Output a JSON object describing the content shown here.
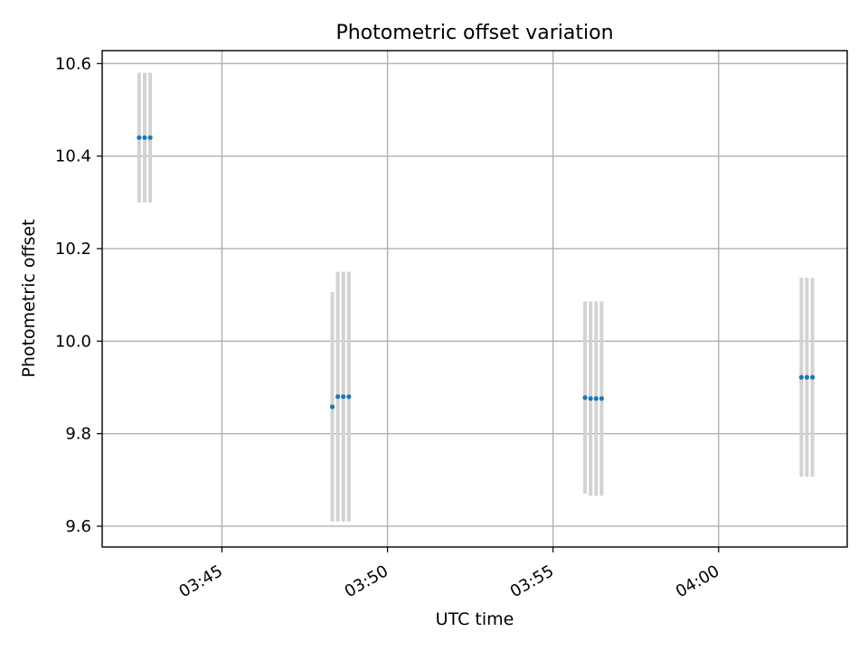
{
  "chart_data": {
    "type": "scatter",
    "title": "Photometric offset variation",
    "xlabel": "UTC time",
    "ylabel": "Photometric offset",
    "x_axis_type": "time",
    "xlim": [
      "03:41:23",
      "04:03:53"
    ],
    "ylim": [
      9.555,
      10.628
    ],
    "x_ticks": [
      "03:45",
      "03:50",
      "03:55",
      "04:00"
    ],
    "y_ticks": [
      9.6,
      9.8,
      10.0,
      10.2,
      10.4,
      10.6
    ],
    "y_tick_labels": [
      "9.6",
      "9.8",
      "10.0",
      "10.2",
      "10.4",
      "10.6"
    ],
    "grid": true,
    "marker_color": "#1f77b4",
    "errorbar_color": "#d3d3d3",
    "points": [
      {
        "t": "03:42:30",
        "y": 10.44,
        "err": 0.14
      },
      {
        "t": "03:42:40",
        "y": 10.44,
        "err": 0.14
      },
      {
        "t": "03:42:50",
        "y": 10.44,
        "err": 0.14
      },
      {
        "t": "03:48:20",
        "y": 9.858,
        "err": 0.248
      },
      {
        "t": "03:48:30",
        "y": 9.88,
        "err": 0.27
      },
      {
        "t": "03:48:40",
        "y": 9.88,
        "err": 0.27
      },
      {
        "t": "03:48:50",
        "y": 9.88,
        "err": 0.27
      },
      {
        "t": "03:55:58",
        "y": 9.878,
        "err": 0.208
      },
      {
        "t": "03:56:08",
        "y": 9.876,
        "err": 0.21
      },
      {
        "t": "03:56:18",
        "y": 9.876,
        "err": 0.21
      },
      {
        "t": "03:56:28",
        "y": 9.876,
        "err": 0.21
      },
      {
        "t": "04:02:30",
        "y": 9.922,
        "err": 0.215
      },
      {
        "t": "04:02:40",
        "y": 9.922,
        "err": 0.215
      },
      {
        "t": "04:02:50",
        "y": 9.922,
        "err": 0.215
      }
    ]
  }
}
